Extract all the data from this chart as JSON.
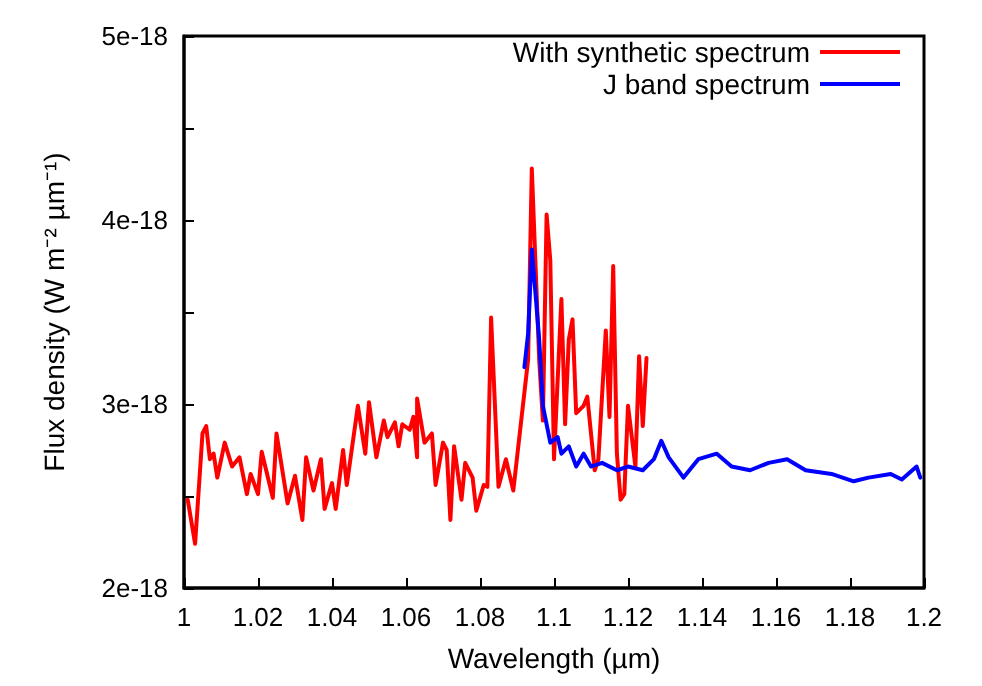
{
  "chart_data": {
    "type": "line",
    "xlabel": "Wavelength (µm)",
    "ylabel": "Flux density (W m⁻² µm⁻¹)",
    "xlim": [
      1,
      1.2
    ],
    "xticks": [
      1,
      1.02,
      1.04,
      1.06,
      1.08,
      1.1,
      1.12,
      1.14,
      1.16,
      1.18,
      1.2
    ],
    "ylim": [
      2e-18,
      5e-18
    ],
    "yticks": [
      2e-18,
      {
        "value": 2.5e-18,
        "label": null
      },
      3e-18,
      {
        "value": 3.5e-18,
        "label": null
      },
      4e-18,
      {
        "value": 4.5e-18,
        "label": null
      },
      5e-18
    ],
    "grid": false,
    "legend": "top right",
    "marker": "none",
    "line_style": "solid",
    "series": [
      {
        "name": "With synthetic spectrum",
        "color": "#ff0000",
        "x": [
          1.001,
          1.003,
          1.005,
          1.006,
          1.007,
          1.008,
          1.009,
          1.011,
          1.013,
          1.015,
          1.017,
          1.018,
          1.02,
          1.021,
          1.024,
          1.025,
          1.028,
          1.03,
          1.032,
          1.033,
          1.035,
          1.037,
          1.038,
          1.04,
          1.041,
          1.043,
          1.044,
          1.047,
          1.049,
          1.05,
          1.052,
          1.054,
          1.055,
          1.057,
          1.058,
          1.059,
          1.061,
          1.062,
          1.063,
          1.063,
          1.065,
          1.067,
          1.068,
          1.07,
          1.071,
          1.072,
          1.073,
          1.075,
          1.076,
          1.078,
          1.079,
          1.081,
          1.082,
          1.083,
          1.085,
          1.087,
          1.089,
          1.093,
          1.094,
          1.096,
          1.097,
          1.098,
          1.099,
          1.1,
          1.102,
          1.103,
          1.104,
          1.105,
          1.106,
          1.108,
          1.109,
          1.111,
          1.112,
          1.114,
          1.115,
          1.116,
          1.117,
          1.118,
          1.119,
          1.12,
          1.122,
          1.123,
          1.124,
          1.125
        ],
        "values": [
          2.48e-18,
          2.24e-18,
          2.84e-18,
          2.88e-18,
          2.7e-18,
          2.73e-18,
          2.6e-18,
          2.79e-18,
          2.66e-18,
          2.71e-18,
          2.51e-18,
          2.62e-18,
          2.51e-18,
          2.74e-18,
          2.49e-18,
          2.84e-18,
          2.46e-18,
          2.61e-18,
          2.37e-18,
          2.71e-18,
          2.53e-18,
          2.7e-18,
          2.43e-18,
          2.57e-18,
          2.43e-18,
          2.75e-18,
          2.56e-18,
          2.99e-18,
          2.73e-18,
          3.01e-18,
          2.71e-18,
          2.91e-18,
          2.82e-18,
          2.9e-18,
          2.77e-18,
          2.89e-18,
          2.86e-18,
          2.93e-18,
          2.71e-18,
          3.03e-18,
          2.79e-18,
          2.84e-18,
          2.56e-18,
          2.79e-18,
          2.75e-18,
          2.37e-18,
          2.77e-18,
          2.48e-18,
          2.68e-18,
          2.6e-18,
          2.42e-18,
          2.56e-18,
          2.55e-18,
          3.47e-18,
          2.55e-18,
          2.7e-18,
          2.53e-18,
          3.24e-18,
          4.28e-18,
          3.24e-18,
          2.91e-18,
          4.03e-18,
          3.78e-18,
          2.7e-18,
          3.57e-18,
          2.89e-18,
          3.35e-18,
          3.46e-18,
          2.95e-18,
          2.99e-18,
          3.04e-18,
          2.64e-18,
          2.7e-18,
          3.4e-18,
          2.93e-18,
          3.75e-18,
          2.73e-18,
          2.48e-18,
          2.51e-18,
          2.99e-18,
          2.66e-18,
          3.26e-18,
          2.88e-18,
          3.25e-18
        ]
      },
      {
        "name": "J band spectrum",
        "color": "#0000ff",
        "x": [
          1.092,
          1.093,
          1.094,
          1.095,
          1.096,
          1.097,
          1.099,
          1.101,
          1.102,
          1.104,
          1.106,
          1.108,
          1.11,
          1.113,
          1.117,
          1.12,
          1.124,
          1.127,
          1.129,
          1.131,
          1.135,
          1.139,
          1.144,
          1.148,
          1.153,
          1.158,
          1.163,
          1.168,
          1.175,
          1.181,
          1.185,
          1.191,
          1.194,
          1.198,
          1.199
        ],
        "values": [
          3.2e-18,
          3.38e-18,
          3.84e-18,
          3.6e-18,
          3.35e-18,
          2.99e-18,
          2.79e-18,
          2.82e-18,
          2.73e-18,
          2.77e-18,
          2.66e-18,
          2.73e-18,
          2.66e-18,
          2.68e-18,
          2.64e-18,
          2.66e-18,
          2.64e-18,
          2.7e-18,
          2.8e-18,
          2.71e-18,
          2.6e-18,
          2.7e-18,
          2.73e-18,
          2.66e-18,
          2.64e-18,
          2.68e-18,
          2.7e-18,
          2.64e-18,
          2.62e-18,
          2.58e-18,
          2.6e-18,
          2.62e-18,
          2.59e-18,
          2.66e-18,
          2.6e-18
        ]
      }
    ]
  }
}
